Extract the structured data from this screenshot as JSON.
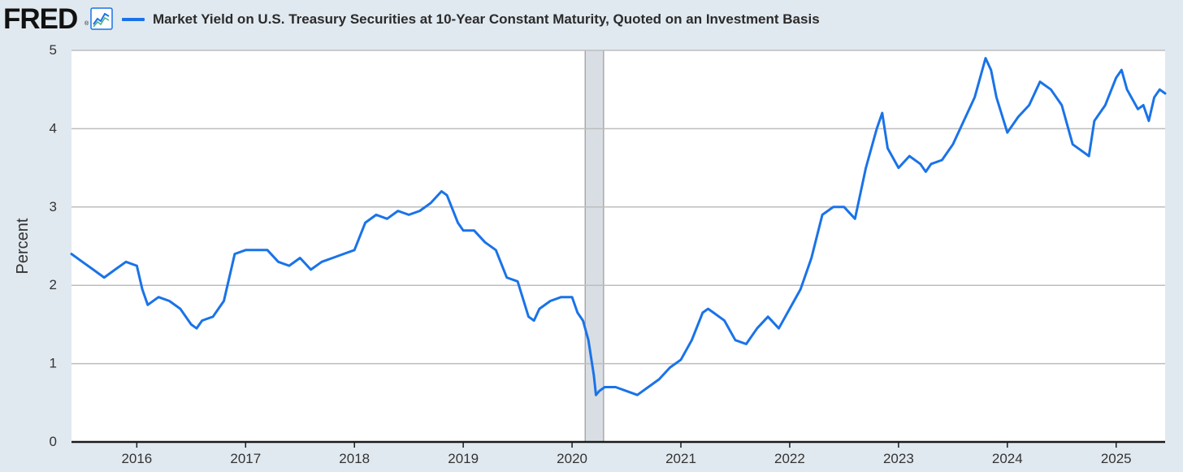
{
  "header": {
    "logo": "FRED",
    "logo_mark": "®",
    "series_icon": "line-chart-icon"
  },
  "colors": {
    "series": "#1a73e8",
    "recession": "#d9dee4",
    "background": "#e1e9f0",
    "plot": "#ffffff",
    "grid": "#bdbdbd"
  },
  "chart_data": {
    "type": "line",
    "title": "",
    "legend": [
      "Market Yield on U.S. Treasury Securities at 10-Year Constant Maturity, Quoted on an Investment Basis"
    ],
    "legend_position": "top",
    "xlabel": "",
    "ylabel": "Percent",
    "xlim": [
      2015.4,
      2025.45
    ],
    "ylim": [
      0,
      5
    ],
    "grid": true,
    "x_ticks": [
      2016,
      2017,
      2018,
      2019,
      2020,
      2021,
      2022,
      2023,
      2024,
      2025
    ],
    "x_tick_labels": [
      "2016",
      "2017",
      "2018",
      "2019",
      "2020",
      "2021",
      "2022",
      "2023",
      "2024",
      "2025"
    ],
    "y_ticks": [
      0,
      1,
      2,
      3,
      4,
      5
    ],
    "y_tick_labels": [
      "0",
      "1",
      "2",
      "3",
      "4",
      "5"
    ],
    "recessions": [
      {
        "start": 2020.12,
        "end": 2020.29
      }
    ],
    "series": [
      {
        "name": "Market Yield on U.S. Treasury Securities at 10-Year Constant Maturity, Quoted on an Investment Basis",
        "x": [
          2015.4,
          2015.5,
          2015.6,
          2015.7,
          2015.8,
          2015.9,
          2016.0,
          2016.05,
          2016.1,
          2016.2,
          2016.3,
          2016.4,
          2016.5,
          2016.55,
          2016.6,
          2016.7,
          2016.8,
          2016.85,
          2016.9,
          2017.0,
          2017.1,
          2017.2,
          2017.3,
          2017.4,
          2017.5,
          2017.6,
          2017.7,
          2017.8,
          2017.9,
          2018.0,
          2018.1,
          2018.2,
          2018.3,
          2018.4,
          2018.5,
          2018.6,
          2018.7,
          2018.8,
          2018.85,
          2018.95,
          2019.0,
          2019.1,
          2019.2,
          2019.3,
          2019.4,
          2019.5,
          2019.6,
          2019.65,
          2019.7,
          2019.8,
          2019.9,
          2020.0,
          2020.05,
          2020.1,
          2020.15,
          2020.2,
          2020.22,
          2020.25,
          2020.3,
          2020.4,
          2020.5,
          2020.6,
          2020.7,
          2020.8,
          2020.9,
          2021.0,
          2021.1,
          2021.2,
          2021.25,
          2021.3,
          2021.4,
          2021.5,
          2021.6,
          2021.7,
          2021.8,
          2021.9,
          2022.0,
          2022.1,
          2022.2,
          2022.3,
          2022.4,
          2022.5,
          2022.6,
          2022.7,
          2022.8,
          2022.85,
          2022.9,
          2023.0,
          2023.1,
          2023.2,
          2023.25,
          2023.3,
          2023.4,
          2023.5,
          2023.6,
          2023.7,
          2023.8,
          2023.85,
          2023.9,
          2024.0,
          2024.1,
          2024.2,
          2024.3,
          2024.4,
          2024.5,
          2024.6,
          2024.7,
          2024.75,
          2024.8,
          2024.9,
          2025.0,
          2025.05,
          2025.1,
          2025.2,
          2025.25,
          2025.3,
          2025.35,
          2025.4,
          2025.45
        ],
        "y": [
          2.4,
          2.3,
          2.2,
          2.1,
          2.2,
          2.3,
          2.25,
          1.95,
          1.75,
          1.85,
          1.8,
          1.7,
          1.5,
          1.45,
          1.55,
          1.6,
          1.8,
          2.1,
          2.4,
          2.45,
          2.45,
          2.45,
          2.3,
          2.25,
          2.35,
          2.2,
          2.3,
          2.35,
          2.4,
          2.45,
          2.8,
          2.9,
          2.85,
          2.95,
          2.9,
          2.95,
          3.05,
          3.2,
          3.15,
          2.8,
          2.7,
          2.7,
          2.55,
          2.45,
          2.1,
          2.05,
          1.6,
          1.55,
          1.7,
          1.8,
          1.85,
          1.85,
          1.65,
          1.55,
          1.3,
          0.85,
          0.6,
          0.65,
          0.7,
          0.7,
          0.65,
          0.6,
          0.7,
          0.8,
          0.95,
          1.05,
          1.3,
          1.65,
          1.7,
          1.65,
          1.55,
          1.3,
          1.25,
          1.45,
          1.6,
          1.45,
          1.7,
          1.95,
          2.35,
          2.9,
          3.0,
          3.0,
          2.85,
          3.5,
          4.0,
          4.2,
          3.75,
          3.5,
          3.65,
          3.55,
          3.45,
          3.55,
          3.6,
          3.8,
          4.1,
          4.4,
          4.9,
          4.75,
          4.4,
          3.95,
          4.15,
          4.3,
          4.6,
          4.5,
          4.3,
          3.8,
          3.7,
          3.65,
          4.1,
          4.3,
          4.65,
          4.75,
          4.5,
          4.25,
          4.3,
          4.1,
          4.4,
          4.5,
          4.45
        ]
      }
    ]
  }
}
